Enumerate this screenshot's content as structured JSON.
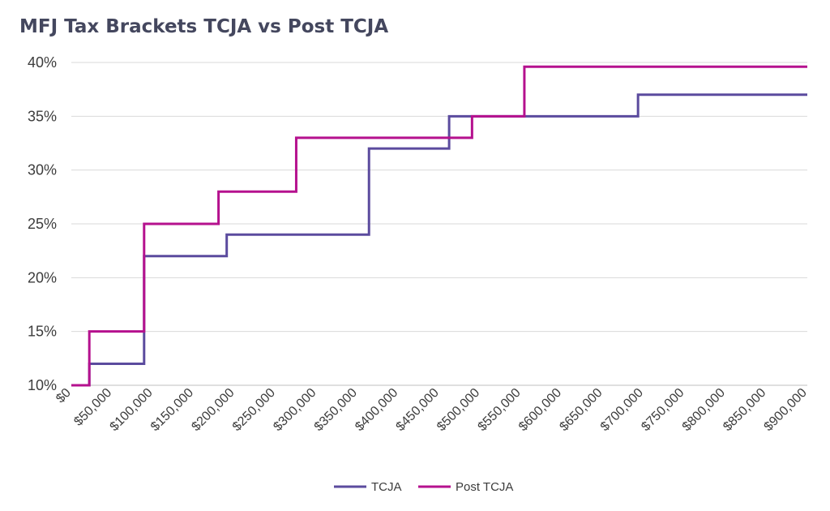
{
  "chart_data": {
    "type": "line",
    "title": "MFJ Tax Brackets TCJA vs Post TCJA",
    "xlabel": "",
    "ylabel": "",
    "xlim": [
      0,
      900000
    ],
    "ylim": [
      10,
      40
    ],
    "y_ticks": [
      10,
      15,
      20,
      25,
      30,
      35,
      40
    ],
    "y_tick_labels": [
      "10%",
      "15%",
      "20%",
      "25%",
      "30%",
      "35%",
      "40%"
    ],
    "x_ticks": [
      0,
      50000,
      100000,
      150000,
      200000,
      250000,
      300000,
      350000,
      400000,
      450000,
      500000,
      550000,
      600000,
      650000,
      700000,
      750000,
      800000,
      850000,
      900000
    ],
    "x_tick_labels": [
      "$0",
      "$50,000",
      "$100,000",
      "$150,000",
      "$200,000",
      "$250,000",
      "$300,000",
      "$350,000",
      "$400,000",
      "$450,000",
      "$500,000",
      "$550,000",
      "$600,000",
      "$650,000",
      "$700,000",
      "$750,000",
      "$800,000",
      "$850,000",
      "$900,000"
    ],
    "grid": true,
    "legend": "bottom-center",
    "series": [
      {
        "name": "TCJA",
        "color": "#5b4b9e",
        "step": "post",
        "x": [
          0,
          22000,
          89000,
          190000,
          364000,
          462000,
          693000,
          900000
        ],
        "y": [
          10,
          12,
          22,
          24,
          32,
          35,
          37,
          37
        ]
      },
      {
        "name": "Post TCJA",
        "color": "#b5118e",
        "step": "post",
        "x": [
          0,
          22000,
          89000,
          180000,
          275000,
          490000,
          554000,
          900000
        ],
        "y": [
          10,
          15,
          25,
          28,
          33,
          35,
          39.6,
          39.6
        ]
      }
    ]
  }
}
